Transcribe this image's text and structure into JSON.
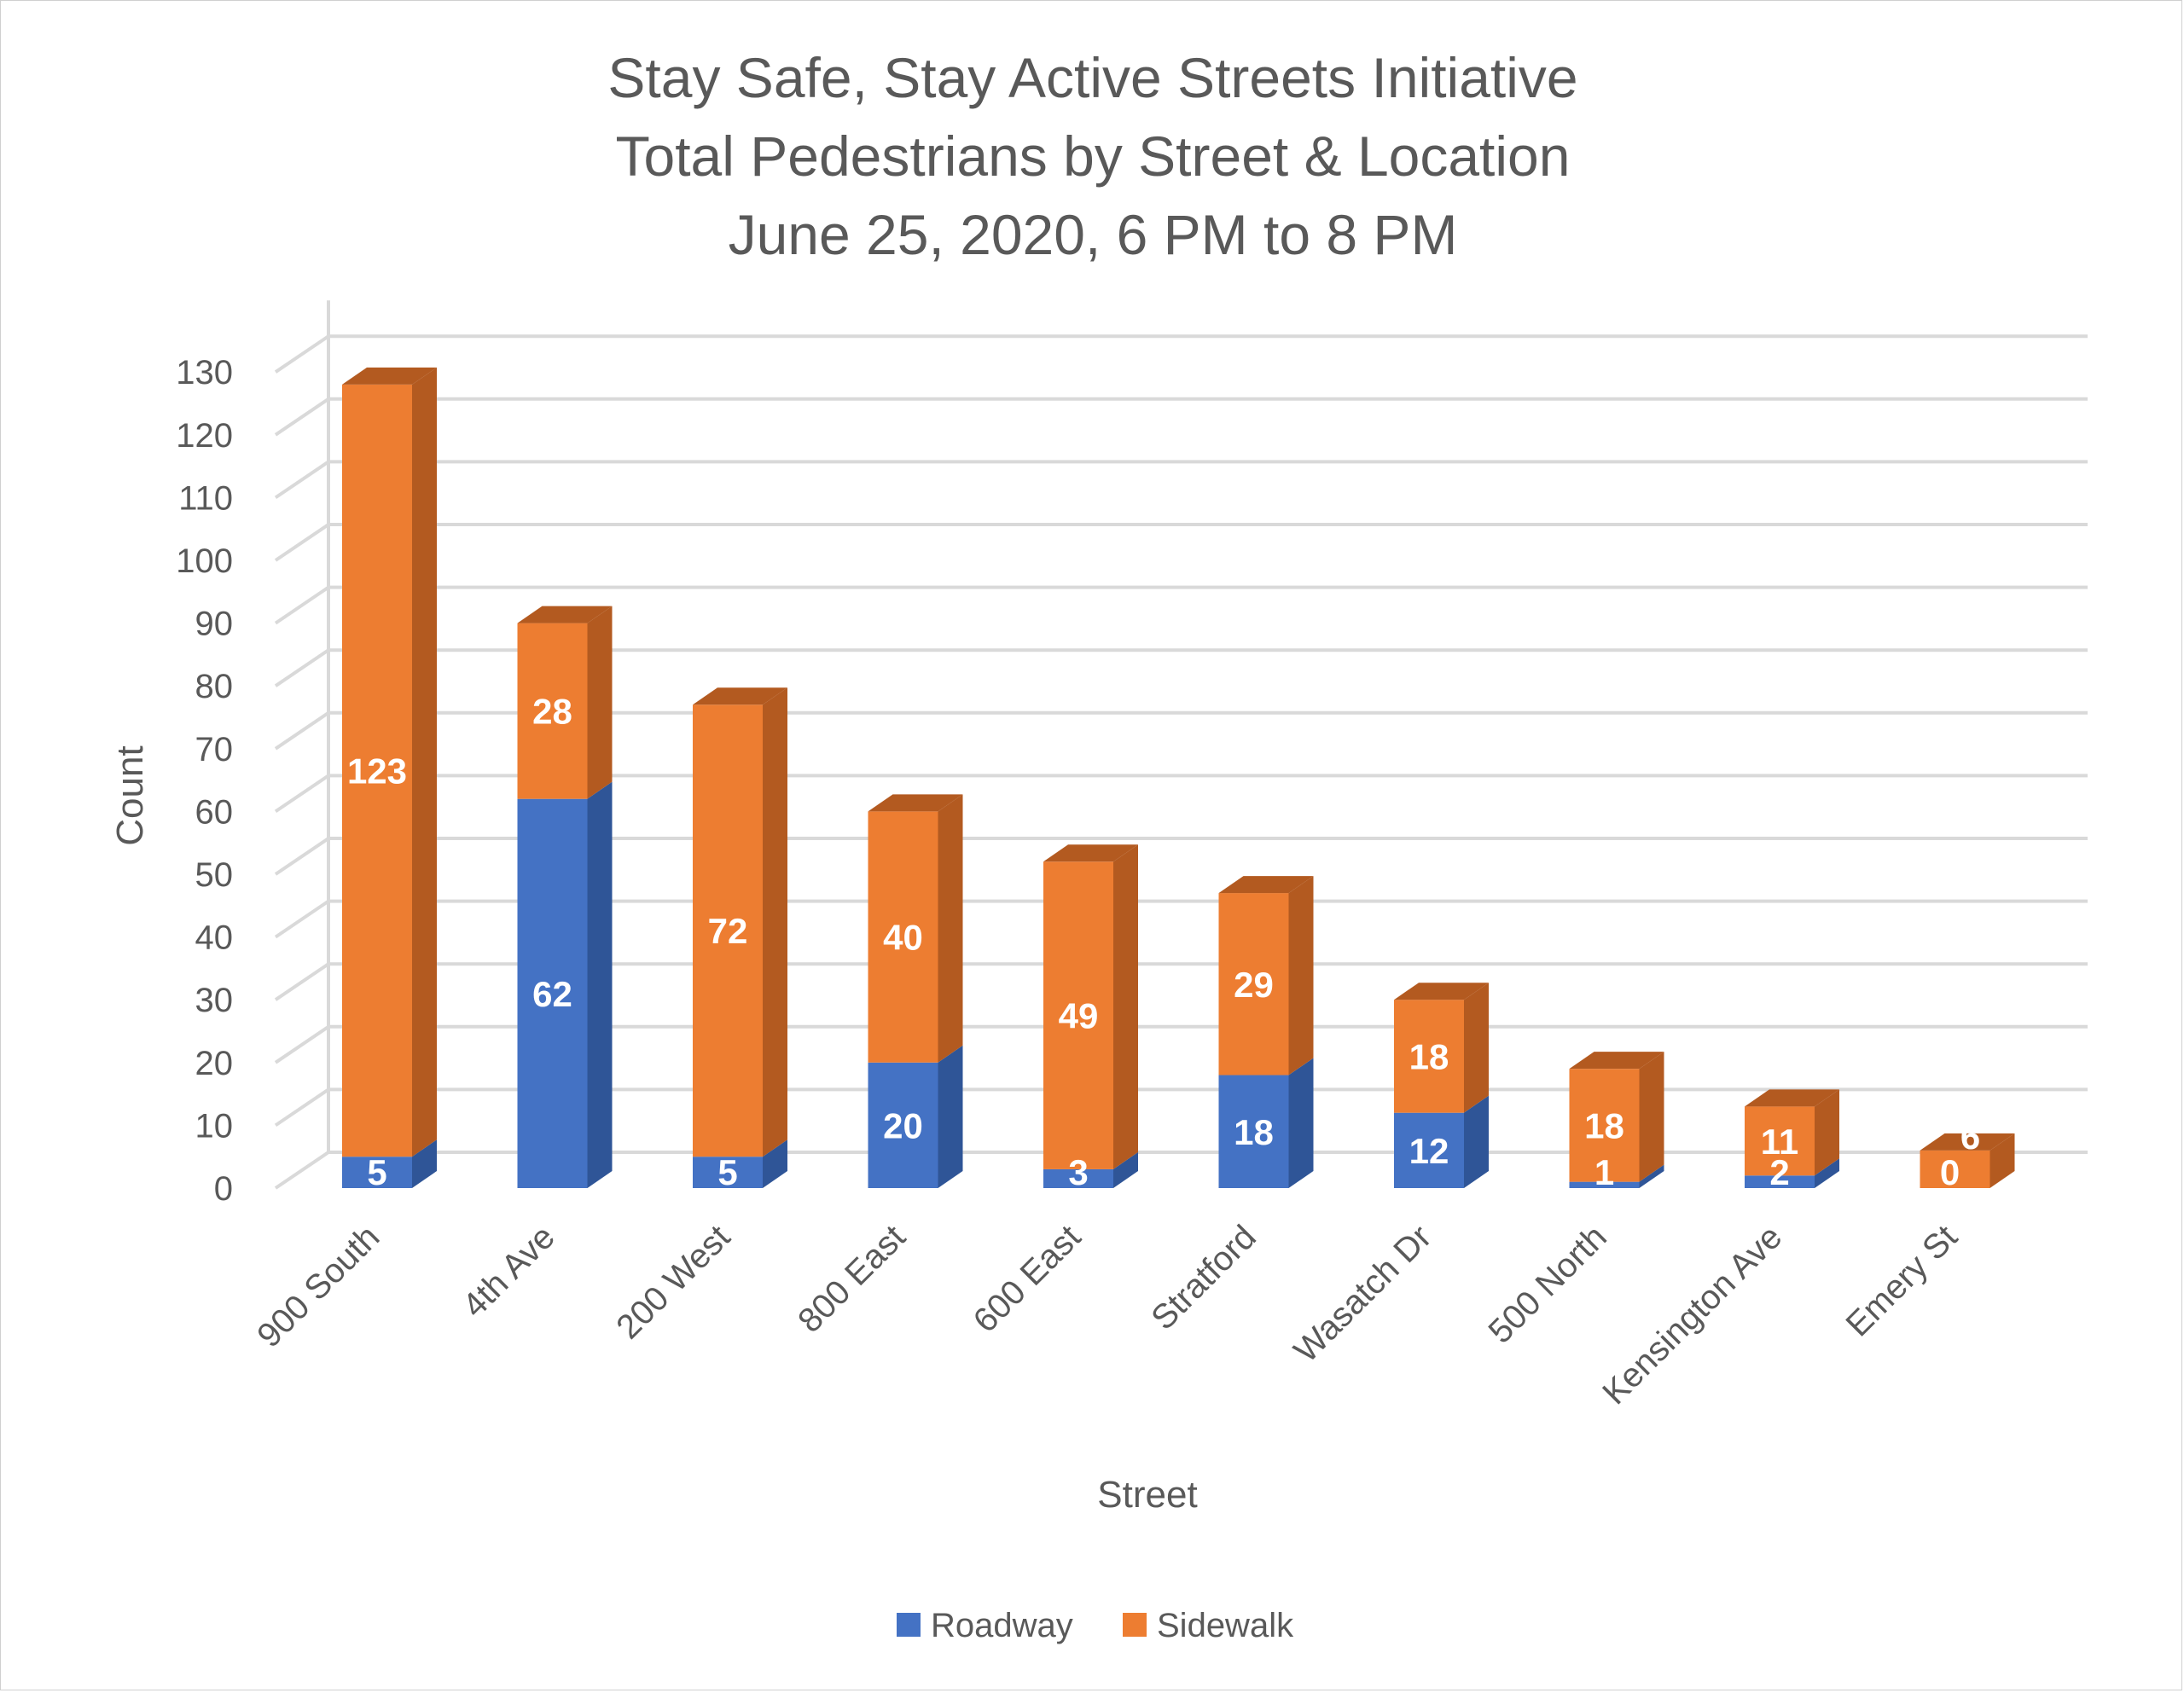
{
  "chart_data": {
    "type": "bar",
    "stacked": true,
    "style": "3d-column",
    "title_lines": [
      "Stay Safe, Stay Active Streets Initiative",
      "Total Pedestrians by Street & Location",
      "June 25, 2020, 6 PM to 8 PM"
    ],
    "xlabel": "Street",
    "ylabel": "Count",
    "ylim": [
      0,
      130
    ],
    "yticks": [
      0,
      10,
      20,
      30,
      40,
      50,
      60,
      70,
      80,
      90,
      100,
      110,
      120,
      130
    ],
    "grid": true,
    "legend_position": "bottom",
    "categories": [
      "900 South",
      "4th Ave",
      "200 West",
      "800 East",
      "600 East",
      "Stratford",
      "Wasatch Dr",
      "500 North",
      "Kensington Ave",
      "Emery St"
    ],
    "series": [
      {
        "name": "Roadway",
        "color": "#4472C4",
        "side_color": "#2F5597",
        "values": [
          5,
          62,
          5,
          20,
          3,
          18,
          12,
          1,
          2,
          0
        ]
      },
      {
        "name": "Sidewalk",
        "color": "#ED7D31",
        "side_color": "#B35A20",
        "values": [
          123,
          28,
          72,
          40,
          49,
          29,
          18,
          18,
          11,
          6
        ]
      }
    ],
    "data_label_color": "#FFFFFF"
  }
}
